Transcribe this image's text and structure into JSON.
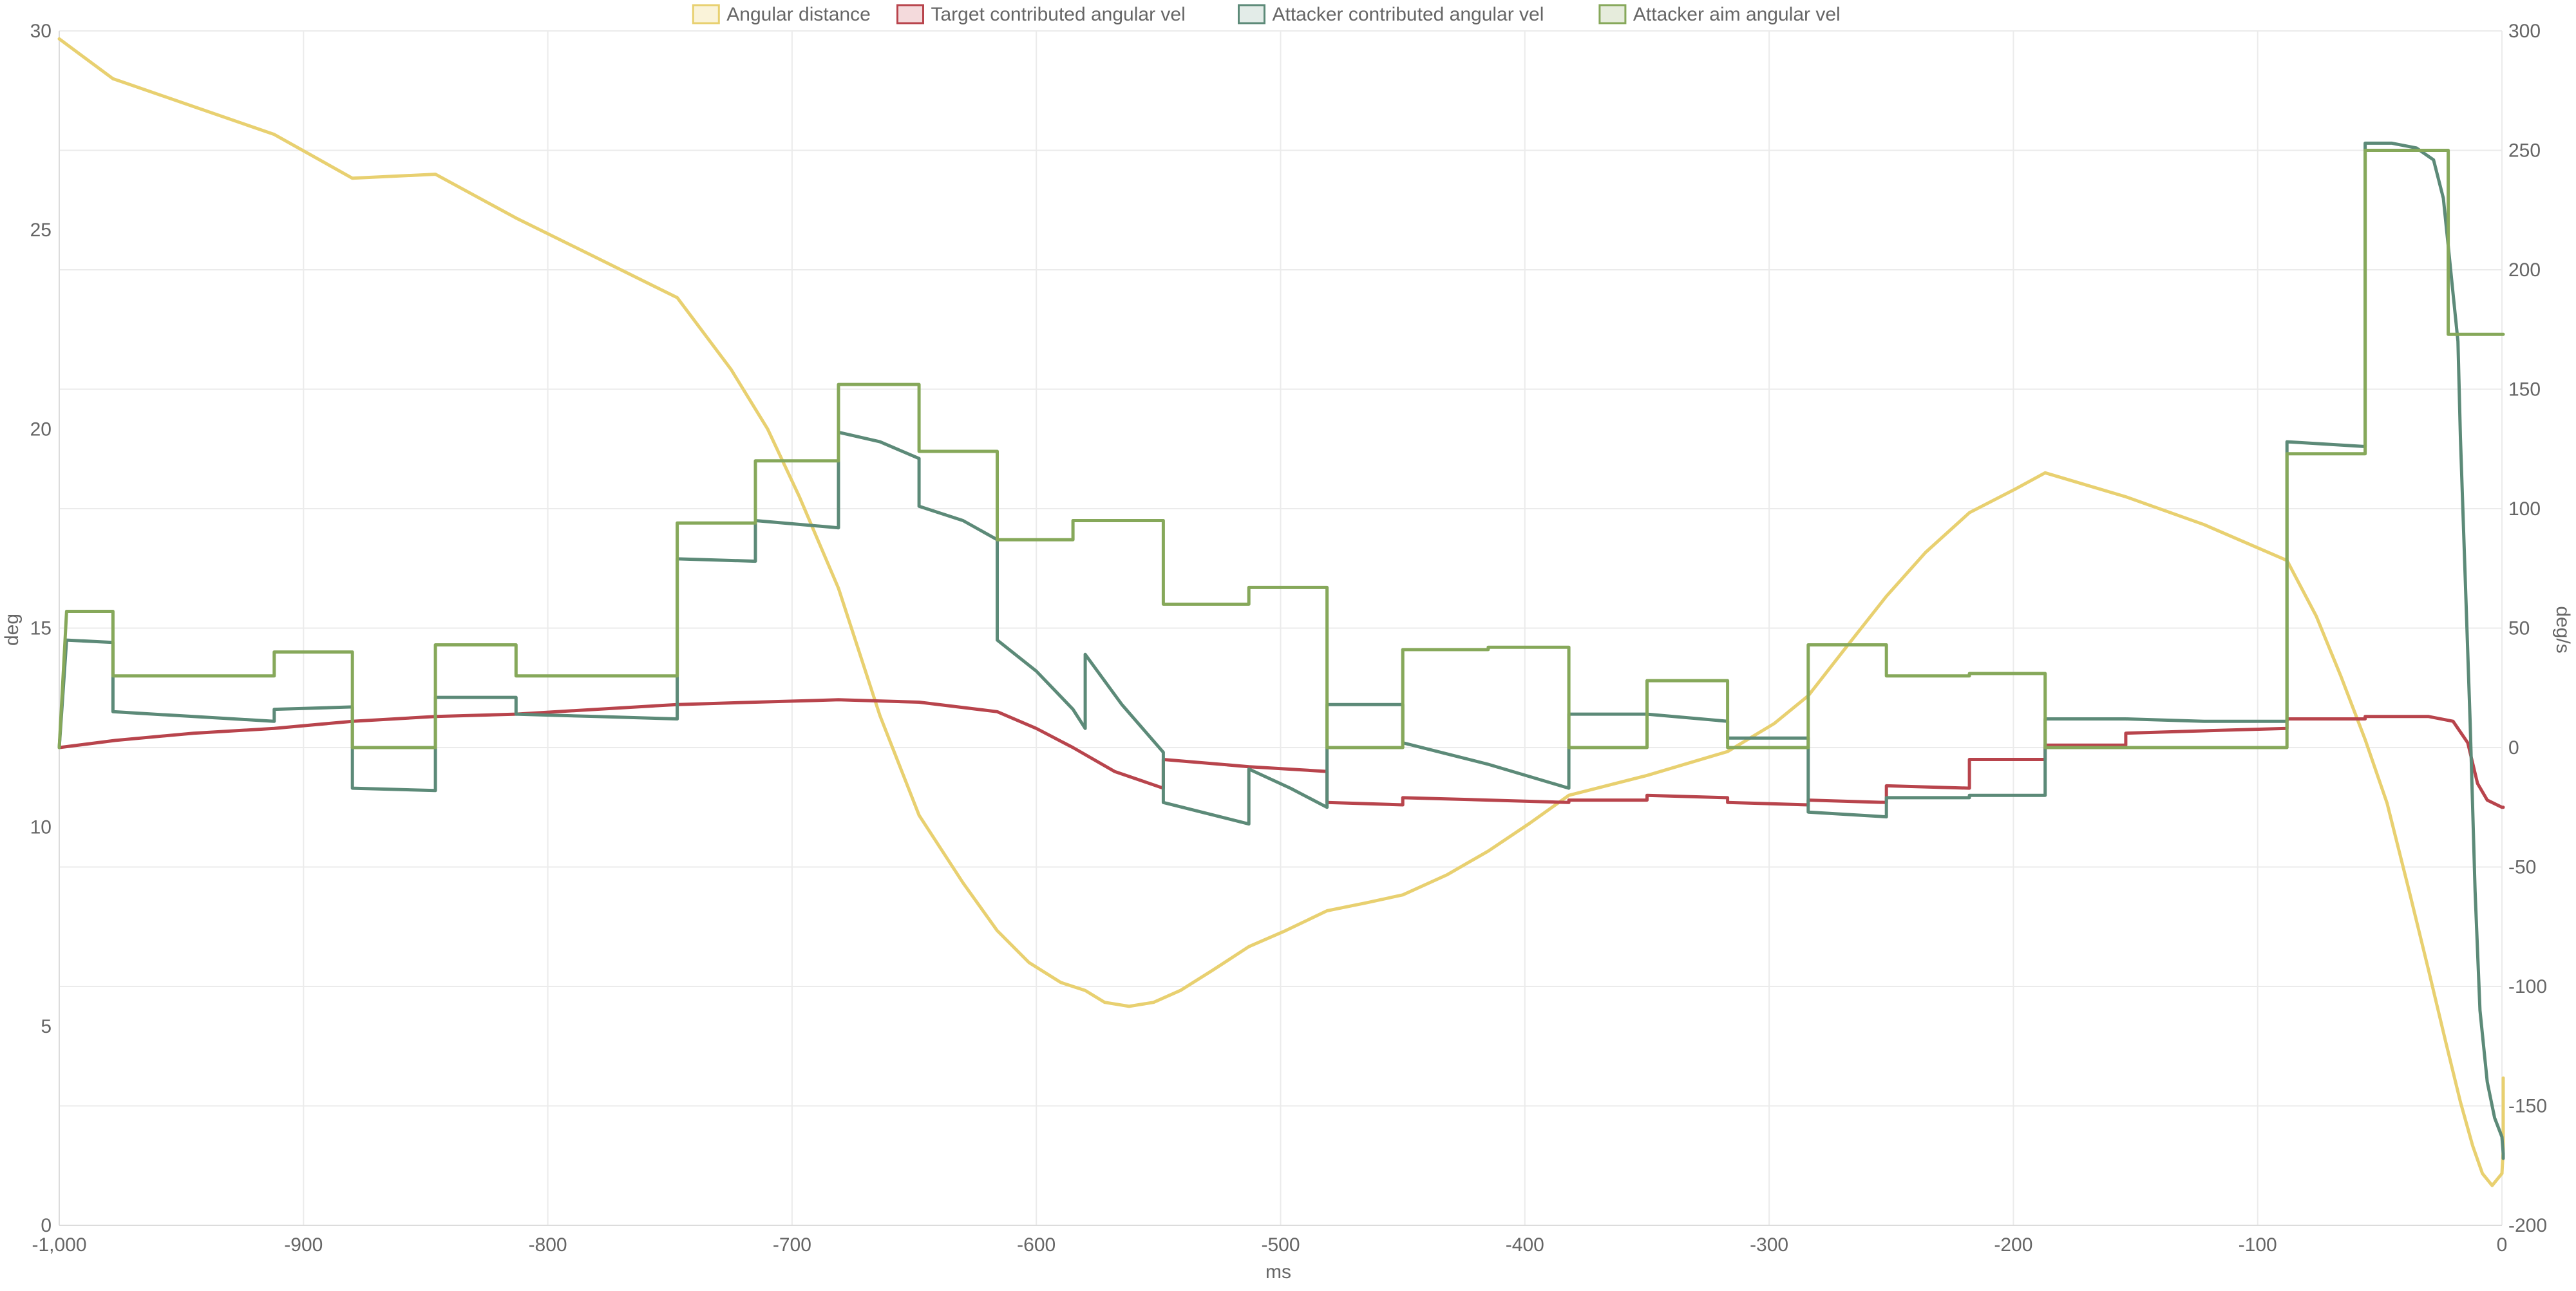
{
  "chart_data": {
    "type": "line",
    "xlabel": "ms",
    "ylabel_left": "deg",
    "ylabel_right": "deg/s",
    "xlim": [
      -1000,
      0
    ],
    "ylim_left": [
      0,
      30
    ],
    "ylim_right": [
      -200,
      300
    ],
    "grid": true,
    "legend_position": "top-center",
    "x_ticks": [
      -1000,
      -900,
      -800,
      -700,
      -600,
      -500,
      -400,
      -300,
      -200,
      -100,
      0
    ],
    "x_tick_labels": [
      "-1,000",
      "-900",
      "-800",
      "-700",
      "-600",
      "-500",
      "-400",
      "-300",
      "-200",
      "-100",
      "0"
    ],
    "y_left_ticks": [
      0,
      5,
      10,
      15,
      20,
      25,
      30
    ],
    "y_left_tick_labels": [
      "0",
      "5",
      "10",
      "15",
      "20",
      "25",
      "30"
    ],
    "y_right_ticks": [
      -200,
      -150,
      -100,
      -50,
      0,
      50,
      100,
      150,
      200,
      250,
      300
    ],
    "y_right_tick_labels": [
      "-200",
      "-150",
      "-100",
      "-50",
      "0",
      "50",
      "100",
      "150",
      "200",
      "250",
      "300"
    ],
    "series": [
      {
        "name": "Angular distance",
        "axis": "left",
        "color": "#e8d070",
        "fill": "#faf3d9",
        "interpolation": "linear",
        "points": [
          [
            -1000,
            29.8
          ],
          [
            -978,
            28.8
          ],
          [
            -945,
            28.1
          ],
          [
            -912,
            27.4
          ],
          [
            -880,
            26.3
          ],
          [
            -846,
            26.4
          ],
          [
            -813,
            25.3
          ],
          [
            -780,
            24.3
          ],
          [
            -747,
            23.3
          ],
          [
            -725,
            21.5
          ],
          [
            -710,
            20.0
          ],
          [
            -697,
            18.3
          ],
          [
            -681,
            16.0
          ],
          [
            -664,
            12.8
          ],
          [
            -648,
            10.3
          ],
          [
            -630,
            8.6
          ],
          [
            -616,
            7.4
          ],
          [
            -603,
            6.6
          ],
          [
            -590,
            6.1
          ],
          [
            -580,
            5.9
          ],
          [
            -572,
            5.6
          ],
          [
            -562,
            5.5
          ],
          [
            -552,
            5.6
          ],
          [
            -541,
            5.9
          ],
          [
            -528,
            6.4
          ],
          [
            -513,
            7.0
          ],
          [
            -498,
            7.4
          ],
          [
            -481,
            7.9
          ],
          [
            -465,
            8.1
          ],
          [
            -450,
            8.3
          ],
          [
            -432,
            8.8
          ],
          [
            -415,
            9.4
          ],
          [
            -398,
            10.1
          ],
          [
            -382,
            10.8
          ],
          [
            -350,
            11.3
          ],
          [
            -317,
            11.9
          ],
          [
            -298,
            12.6
          ],
          [
            -284,
            13.3
          ],
          [
            -270,
            14.4
          ],
          [
            -252,
            15.8
          ],
          [
            -236,
            16.9
          ],
          [
            -218,
            17.9
          ],
          [
            -199,
            18.5
          ],
          [
            -187,
            18.9
          ],
          [
            -176,
            18.7
          ],
          [
            -154,
            18.3
          ],
          [
            -122,
            17.6
          ],
          [
            -88,
            16.7
          ],
          [
            -76,
            15.3
          ],
          [
            -66,
            13.8
          ],
          [
            -56,
            12.2
          ],
          [
            -47,
            10.6
          ],
          [
            -38,
            8.4
          ],
          [
            -30,
            6.4
          ],
          [
            -23,
            4.6
          ],
          [
            -17,
            3.1
          ],
          [
            -12,
            2.0
          ],
          [
            -8,
            1.3
          ],
          [
            -4,
            1.0
          ],
          [
            0,
            1.3
          ],
          [
            5,
            1.9
          ],
          [
            10,
            2.7
          ],
          [
            15,
            3.7
          ]
        ]
      },
      {
        "name": "Target contributed angular vel",
        "axis": "right",
        "color": "#b8444c",
        "fill": "#f4dadc",
        "interpolation": "step",
        "points": [
          [
            -1000,
            0
          ],
          [
            -977,
            3
          ],
          [
            -945,
            6
          ],
          [
            -912,
            8
          ],
          [
            -880,
            11
          ],
          [
            -846,
            13
          ],
          [
            -813,
            14
          ],
          [
            -780,
            16
          ],
          [
            -747,
            18
          ],
          [
            -715,
            19
          ],
          [
            -681,
            20
          ],
          [
            -648,
            19
          ],
          [
            -616,
            15
          ],
          [
            -600,
            8
          ],
          [
            -585,
            0
          ],
          [
            -568,
            -10
          ],
          [
            -548,
            -17
          ],
          [
            -548,
            -5
          ],
          [
            -513,
            -8
          ],
          [
            -481,
            -10
          ],
          [
            -481,
            -23
          ],
          [
            -450,
            -24
          ],
          [
            -450,
            -21
          ],
          [
            -415,
            -22
          ],
          [
            -382,
            -23
          ],
          [
            -382,
            -22
          ],
          [
            -350,
            -22
          ],
          [
            -350,
            -20
          ],
          [
            -317,
            -21
          ],
          [
            -317,
            -23
          ],
          [
            -284,
            -24
          ],
          [
            -284,
            -22
          ],
          [
            -252,
            -23
          ],
          [
            -252,
            -16
          ],
          [
            -218,
            -17
          ],
          [
            -218,
            -5
          ],
          [
            -187,
            -5
          ],
          [
            -187,
            1
          ],
          [
            -154,
            1
          ],
          [
            -154,
            6
          ],
          [
            -122,
            7
          ],
          [
            -88,
            8
          ],
          [
            -88,
            12
          ],
          [
            -56,
            12
          ],
          [
            -56,
            13
          ],
          [
            -30,
            13
          ],
          [
            -20,
            11
          ],
          [
            -14,
            2
          ],
          [
            -10,
            -15
          ],
          [
            -6,
            -22
          ],
          [
            0,
            -25
          ],
          [
            15,
            -25
          ]
        ]
      },
      {
        "name": "Attacker contributed angular vel",
        "axis": "right",
        "color": "#5c8a78",
        "fill": "#e3ece8",
        "interpolation": "step",
        "points": [
          [
            -1000,
            0
          ],
          [
            -997,
            45
          ],
          [
            -978,
            44
          ],
          [
            -978,
            15
          ],
          [
            -945,
            13
          ],
          [
            -912,
            11
          ],
          [
            -912,
            16
          ],
          [
            -880,
            17
          ],
          [
            -880,
            -17
          ],
          [
            -846,
            -18
          ],
          [
            -846,
            21
          ],
          [
            -813,
            21
          ],
          [
            -813,
            14
          ],
          [
            -780,
            13
          ],
          [
            -747,
            12
          ],
          [
            -747,
            79
          ],
          [
            -715,
            78
          ],
          [
            -715,
            95
          ],
          [
            -681,
            92
          ],
          [
            -681,
            132
          ],
          [
            -664,
            128
          ],
          [
            -648,
            121
          ],
          [
            -648,
            101
          ],
          [
            -630,
            95
          ],
          [
            -616,
            87
          ],
          [
            -616,
            45
          ],
          [
            -600,
            32
          ],
          [
            -585,
            16
          ],
          [
            -580,
            8
          ],
          [
            -580,
            39
          ],
          [
            -565,
            18
          ],
          [
            -548,
            -2
          ],
          [
            -548,
            -23
          ],
          [
            -513,
            -32
          ],
          [
            -513,
            -9
          ],
          [
            -496,
            -17
          ],
          [
            -481,
            -25
          ],
          [
            -481,
            18
          ],
          [
            -450,
            18
          ],
          [
            -450,
            2
          ],
          [
            -415,
            -7
          ],
          [
            -382,
            -17
          ],
          [
            -382,
            14
          ],
          [
            -350,
            14
          ],
          [
            -317,
            11
          ],
          [
            -317,
            4
          ],
          [
            -284,
            4
          ],
          [
            -284,
            -27
          ],
          [
            -252,
            -29
          ],
          [
            -252,
            -21
          ],
          [
            -218,
            -21
          ],
          [
            -218,
            -20
          ],
          [
            -187,
            -20
          ],
          [
            -187,
            12
          ],
          [
            -154,
            12
          ],
          [
            -122,
            11
          ],
          [
            -88,
            11
          ],
          [
            -88,
            128
          ],
          [
            -56,
            126
          ],
          [
            -56,
            253
          ],
          [
            -45,
            253
          ],
          [
            -35,
            251
          ],
          [
            -28,
            246
          ],
          [
            -24,
            230
          ],
          [
            -22,
            210
          ],
          [
            -20,
            190
          ],
          [
            -18,
            170
          ],
          [
            -17,
            130
          ],
          [
            -15,
            70
          ],
          [
            -13,
            10
          ],
          [
            -11,
            -60
          ],
          [
            -9,
            -110
          ],
          [
            -6,
            -140
          ],
          [
            -3,
            -155
          ],
          [
            0,
            -163
          ],
          [
            10,
            -170
          ],
          [
            15,
            -172
          ]
        ]
      },
      {
        "name": "Attacker aim angular vel",
        "axis": "right",
        "color": "#86a85a",
        "fill": "#e6ecdc",
        "interpolation": "step",
        "points": [
          [
            -1000,
            0
          ],
          [
            -997,
            57
          ],
          [
            -978,
            57
          ],
          [
            -978,
            30
          ],
          [
            -912,
            30
          ],
          [
            -912,
            40
          ],
          [
            -880,
            40
          ],
          [
            -880,
            0
          ],
          [
            -846,
            0
          ],
          [
            -846,
            43
          ],
          [
            -813,
            43
          ],
          [
            -813,
            30
          ],
          [
            -747,
            30
          ],
          [
            -747,
            94
          ],
          [
            -715,
            94
          ],
          [
            -715,
            120
          ],
          [
            -681,
            120
          ],
          [
            -681,
            152
          ],
          [
            -648,
            152
          ],
          [
            -648,
            124
          ],
          [
            -616,
            124
          ],
          [
            -616,
            87
          ],
          [
            -585,
            87
          ],
          [
            -585,
            95
          ],
          [
            -548,
            95
          ],
          [
            -548,
            60
          ],
          [
            -513,
            60
          ],
          [
            -513,
            67
          ],
          [
            -481,
            67
          ],
          [
            -481,
            0
          ],
          [
            -450,
            0
          ],
          [
            -450,
            41
          ],
          [
            -415,
            41
          ],
          [
            -415,
            42
          ],
          [
            -382,
            42
          ],
          [
            -382,
            0
          ],
          [
            -350,
            0
          ],
          [
            -350,
            28
          ],
          [
            -317,
            28
          ],
          [
            -317,
            0
          ],
          [
            -284,
            0
          ],
          [
            -284,
            43
          ],
          [
            -252,
            43
          ],
          [
            -252,
            30
          ],
          [
            -218,
            30
          ],
          [
            -218,
            31
          ],
          [
            -187,
            31
          ],
          [
            -187,
            0
          ],
          [
            -88,
            0
          ],
          [
            -88,
            123
          ],
          [
            -56,
            123
          ],
          [
            -56,
            250
          ],
          [
            -22,
            250
          ],
          [
            -22,
            173
          ],
          [
            0,
            173
          ],
          [
            15,
            173
          ]
        ]
      }
    ]
  }
}
